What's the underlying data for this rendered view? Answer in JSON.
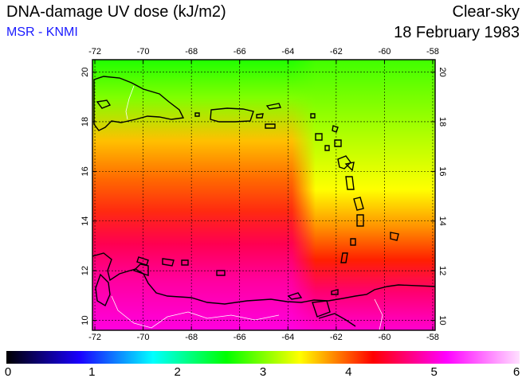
{
  "header": {
    "title": "DNA-damage UV dose (kJ/m2)",
    "source": "MSR - KNMI",
    "condition": "Clear-sky",
    "date": "18 February 1983"
  },
  "map": {
    "lon_ticks": [
      "-72",
      "-70",
      "-68",
      "-66",
      "-64",
      "-62",
      "-60",
      "-58"
    ],
    "lat_ticks": [
      "10",
      "12",
      "14",
      "16",
      "18",
      "20"
    ],
    "extent": {
      "lon": [
        -72.1,
        -57.9
      ],
      "lat": [
        9.6,
        20.5
      ]
    }
  },
  "colorbar": {
    "labels": [
      "0",
      "1",
      "2",
      "3",
      "4",
      "5",
      "6"
    ],
    "colors": [
      "#000000",
      "#1a00ff",
      "#00ffff",
      "#00ff00",
      "#ffff00",
      "#ff0000",
      "#ff00ff",
      "#ffe0ff"
    ]
  }
}
